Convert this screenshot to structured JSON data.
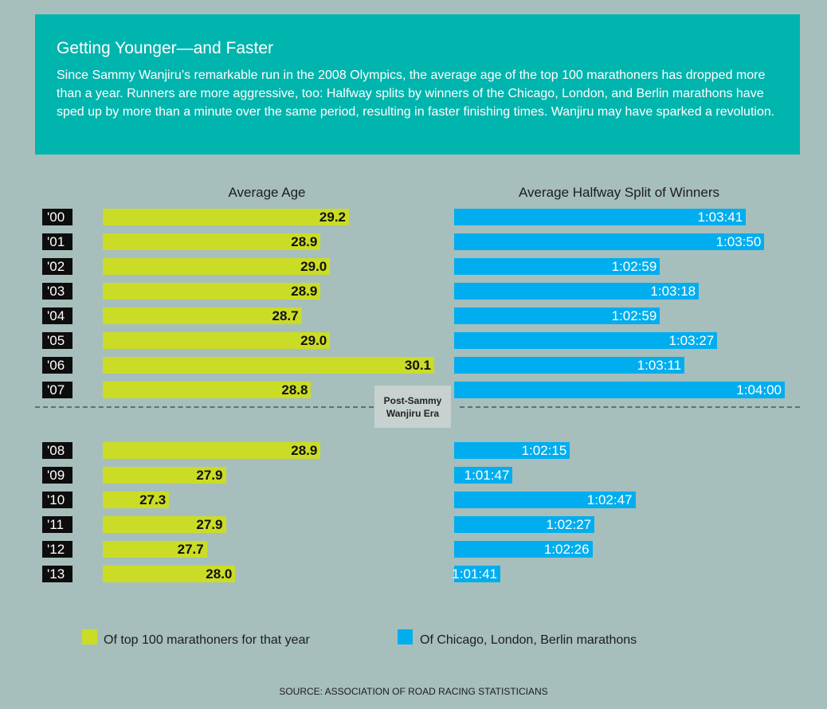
{
  "header": {
    "title": "Getting Younger—and Faster",
    "body": "Since Sammy Wanjiru’s remarkable run in the 2008 Olympics, the average age of the top 100 marathoners has dropped more than a year. Runners are more aggressive, too: Halfway splits by winners of the Chicago, London, and Berlin marathons have sped up by more than a minute over the same period, resulting in faster finishing times. Wanjiru may have sparked a revolution."
  },
  "chart_data": {
    "type": "bar",
    "categories": [
      "'00",
      "'01",
      "'02",
      "'03",
      "'04",
      "'05",
      "'06",
      "'07",
      "'08",
      "'09",
      "'10",
      "'11",
      "'12",
      "'13"
    ],
    "series": [
      {
        "name": "Average Age",
        "legend": "Of top 100 marathoners for that year",
        "color": "#cbdc26",
        "values": [
          29.2,
          28.9,
          29.0,
          28.9,
          28.7,
          29.0,
          30.1,
          28.8,
          28.9,
          27.9,
          27.3,
          27.9,
          27.7,
          28.0
        ],
        "labels": [
          "29.2",
          "28.9",
          "29.0",
          "28.9",
          "28.7",
          "29.0",
          "30.1",
          "28.8",
          "28.9",
          "27.9",
          "27.3",
          "27.9",
          "27.7",
          "28.0"
        ]
      },
      {
        "name": "Average Halfway Split of Winners",
        "legend": "Of Chicago, London, Berlin marathons",
        "color": "#00aeef",
        "values_seconds": [
          3821,
          3830,
          3779,
          3798,
          3779,
          3807,
          3791,
          3840,
          3735,
          3707,
          3767,
          3747,
          3746,
          3701
        ],
        "labels": [
          "1:03:41",
          "1:03:50",
          "1:02:59",
          "1:03:18",
          "1:02:59",
          "1:03:27",
          "1:03:11",
          "1:04:00",
          "1:02:15",
          "1:01:47",
          "1:02:47",
          "1:02:27",
          "1:02:26",
          "1:01:41"
        ]
      }
    ],
    "age_axis": [
      26.6,
      30.1
    ],
    "split_axis_seconds": [
      3701,
      3840
    ],
    "annotation": "Post-Sammy Wanjiru Era",
    "source": "SOURCE: ASSOCIATION OF ROAD RACING STATISTICIANS"
  }
}
